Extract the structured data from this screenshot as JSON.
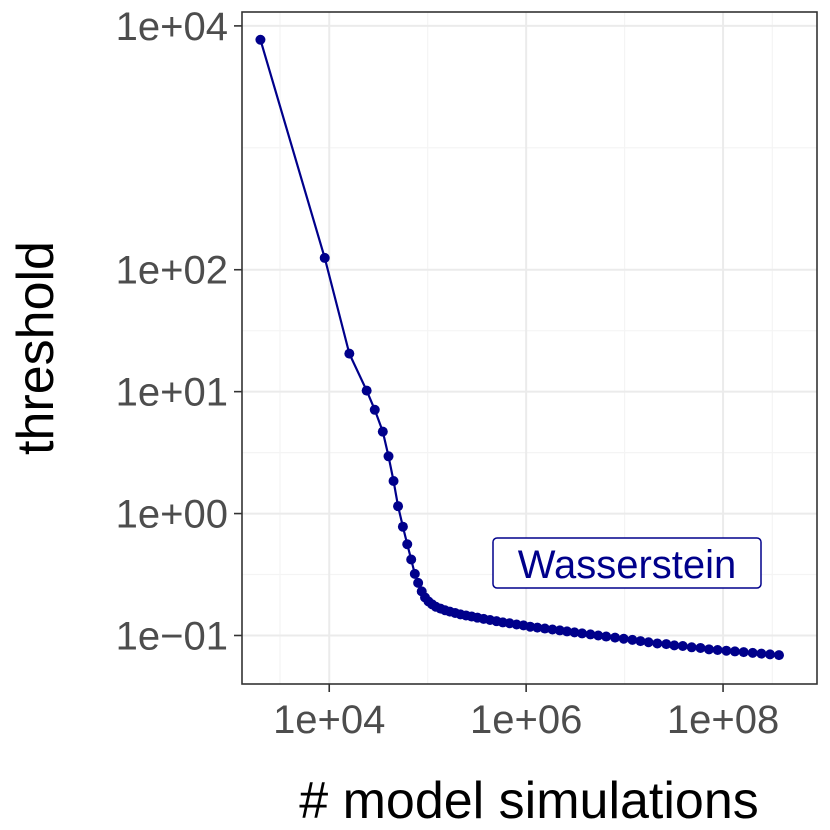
{
  "chart_data": {
    "type": "line",
    "title": "",
    "xlabel": "# model simulations",
    "ylabel": "threshold",
    "xscale": "log10",
    "yscale": "log10",
    "xlim": [
      1300,
      900000000
    ],
    "ylim": [
      0.04,
      13000
    ],
    "grid": true,
    "x_ticks": [
      10000,
      1000000,
      100000000
    ],
    "x_tick_labels": [
      "1e+04",
      "1e+06",
      "1e+08"
    ],
    "y_ticks": [
      10000,
      100,
      10,
      1,
      0.1
    ],
    "y_tick_labels": [
      "1e+04",
      "1e+02",
      "1e+01",
      "1e+00",
      "1e−01"
    ],
    "annotation": "Wasserstein",
    "color": "#00008b",
    "series": [
      {
        "name": "Wasserstein",
        "x": [
          2000,
          9000,
          16000,
          24000,
          29000,
          35000,
          40000,
          45000,
          50000,
          56000,
          62000,
          68000,
          74000,
          80000,
          87000,
          94000,
          102000,
          111000,
          121000,
          135000,
          150000,
          168000,
          190000,
          215000,
          245000,
          280000,
          320000,
          370000,
          430000,
          500000,
          580000,
          680000,
          800000,
          940000,
          1100000,
          1300000,
          1550000,
          1850000,
          2200000,
          2600000,
          3100000,
          3700000,
          4500000,
          5400000,
          6500000,
          8000000,
          9800000,
          12000000,
          14500000,
          17500000,
          21500000,
          26500000,
          32000000,
          39000000,
          48000000,
          59000000,
          72000000,
          88000000,
          108000000,
          132000000,
          162000000,
          200000000,
          245000000,
          300000000,
          370000000
        ],
        "y": [
          7700,
          125,
          20.5,
          10.2,
          7.1,
          4.7,
          2.95,
          1.85,
          1.15,
          0.78,
          0.56,
          0.42,
          0.32,
          0.27,
          0.23,
          0.205,
          0.19,
          0.18,
          0.172,
          0.166,
          0.161,
          0.157,
          0.153,
          0.149,
          0.146,
          0.143,
          0.14,
          0.137,
          0.134,
          0.131,
          0.128,
          0.126,
          0.123,
          0.121,
          0.118,
          0.116,
          0.114,
          0.112,
          0.11,
          0.108,
          0.106,
          0.104,
          0.102,
          0.1,
          0.098,
          0.096,
          0.094,
          0.092,
          0.09,
          0.088,
          0.086,
          0.085,
          0.083,
          0.082,
          0.08,
          0.079,
          0.077,
          0.076,
          0.075,
          0.074,
          0.073,
          0.072,
          0.071,
          0.07,
          0.069
        ]
      }
    ]
  }
}
